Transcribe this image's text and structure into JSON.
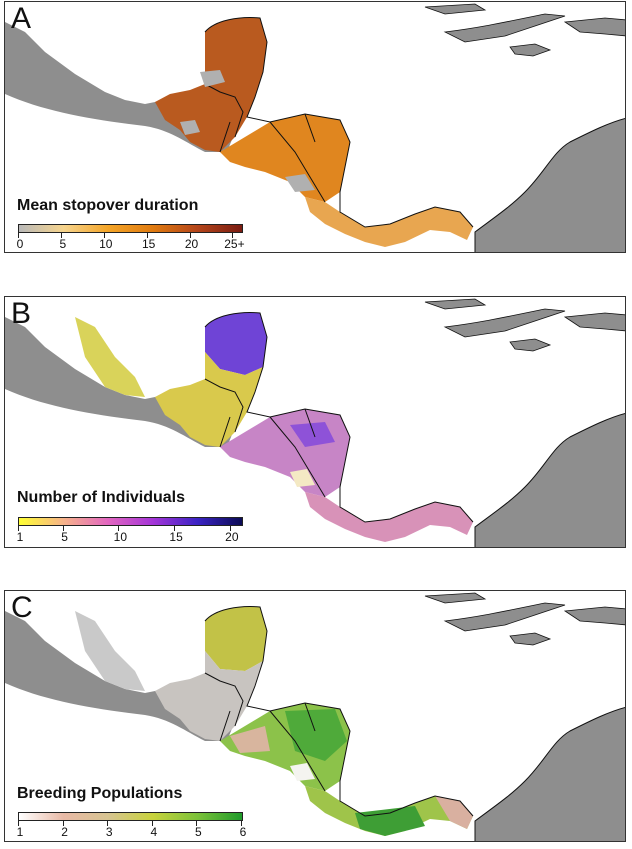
{
  "panels": [
    {
      "letter": "A",
      "legend_title": "Mean stopover duration",
      "tick_labels": [
        "0",
        "5",
        "10",
        "15",
        "20",
        "25+"
      ],
      "tick_values": [
        0,
        5,
        10,
        15,
        20,
        25
      ],
      "scale_min": 0,
      "scale_max": 26,
      "gradient": [
        "#b9b9b9",
        "#f6d48d",
        "#f4a528",
        "#e07b10",
        "#b4451a",
        "#7a1c12"
      ]
    },
    {
      "letter": "B",
      "legend_title": "Number of Individuals",
      "tick_labels": [
        "1",
        "5",
        "10",
        "15",
        "20"
      ],
      "tick_values": [
        1,
        5,
        10,
        15,
        20
      ],
      "scale_min": 1,
      "scale_max": 21,
      "gradient": [
        "#ffff33",
        "#f7b38a",
        "#e266c0",
        "#a535d8",
        "#3b23c4",
        "#0b0b55"
      ]
    },
    {
      "letter": "C",
      "legend_title": "Breeding Populations",
      "tick_labels": [
        "1",
        "2",
        "3",
        "4",
        "5",
        "6"
      ],
      "tick_values": [
        1,
        2,
        3,
        4,
        5,
        6
      ],
      "scale_min": 1,
      "scale_max": 6,
      "gradient": [
        "#ffffff",
        "#e8b9a6",
        "#d7c491",
        "#c8d23c",
        "#7cc23a",
        "#1f9a2a"
      ]
    }
  ]
}
